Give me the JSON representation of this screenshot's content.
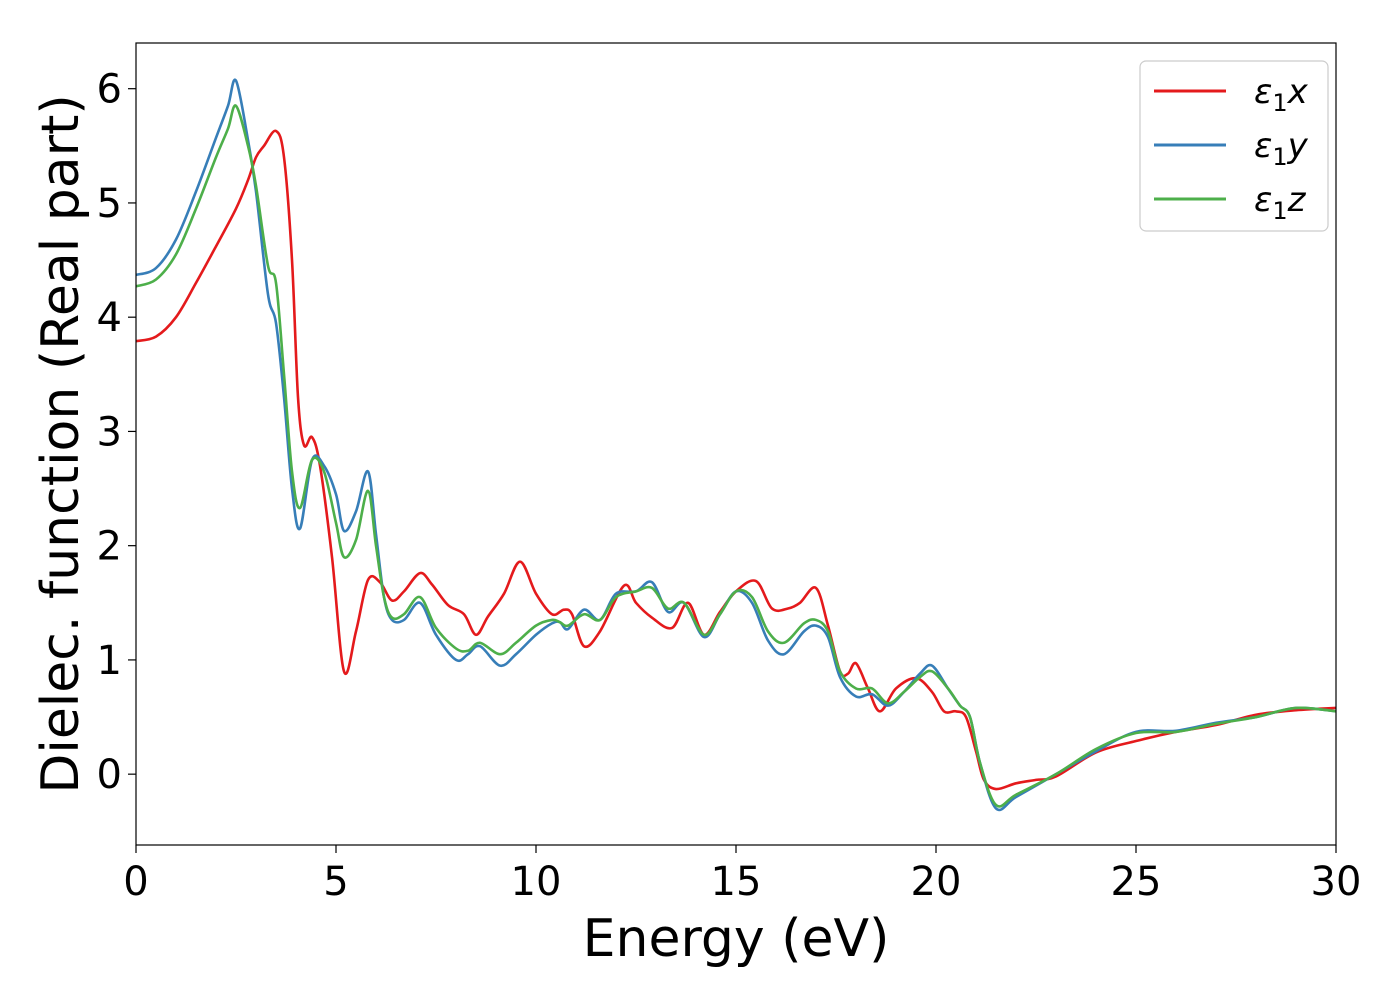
{
  "chart_data": {
    "type": "line",
    "title": "",
    "xlabel": "Energy (eV)",
    "ylabel": "Dielec. function (Real part)",
    "xlim": [
      0,
      30
    ],
    "ylim": [
      -0.62,
      6.4
    ],
    "xticks": [
      0,
      5,
      10,
      15,
      20,
      25,
      30
    ],
    "yticks": [
      0,
      1,
      2,
      3,
      4,
      5,
      6
    ],
    "xtick_labels": [
      "0",
      "5",
      "10",
      "15",
      "20",
      "25",
      "30"
    ],
    "ytick_labels": [
      "0",
      "1",
      "2",
      "3",
      "4",
      "5",
      "6"
    ],
    "grid": false,
    "legend_position": "top-right",
    "series": [
      {
        "name": "ε1x",
        "legend_main": "ε",
        "legend_sub": "1",
        "legend_var": "x",
        "color": "#e41a1c",
        "x": [
          0,
          0.5,
          1.0,
          1.5,
          2.0,
          2.5,
          2.8,
          3.0,
          3.2,
          3.5,
          3.7,
          3.9,
          4.05,
          4.2,
          4.4,
          4.6,
          4.9,
          5.2,
          5.5,
          5.8,
          6.1,
          6.4,
          6.7,
          7.1,
          7.4,
          7.8,
          8.2,
          8.5,
          8.8,
          9.2,
          9.6,
          10.0,
          10.4,
          10.7,
          10.9,
          11.2,
          11.6,
          12.2,
          12.5,
          12.9,
          13.4,
          13.8,
          14.2,
          14.6,
          15.0,
          15.5,
          15.9,
          16.3,
          16.6,
          17.0,
          17.3,
          17.6,
          17.8,
          18.0,
          18.3,
          18.6,
          19.0,
          19.5,
          19.9,
          20.2,
          20.5,
          20.75,
          21.0,
          21.2,
          21.5,
          22.0,
          22.5,
          23.0,
          24.0,
          25.0,
          26.0,
          27.0,
          28.0,
          29.0,
          30.0
        ],
        "y": [
          3.79,
          3.83,
          4.0,
          4.3,
          4.62,
          4.95,
          5.2,
          5.4,
          5.5,
          5.63,
          5.4,
          4.5,
          3.3,
          2.88,
          2.95,
          2.7,
          1.9,
          0.9,
          1.25,
          1.7,
          1.68,
          1.52,
          1.6,
          1.76,
          1.66,
          1.48,
          1.4,
          1.22,
          1.38,
          1.58,
          1.86,
          1.58,
          1.4,
          1.44,
          1.4,
          1.12,
          1.25,
          1.65,
          1.5,
          1.37,
          1.28,
          1.5,
          1.22,
          1.42,
          1.6,
          1.69,
          1.45,
          1.45,
          1.5,
          1.63,
          1.3,
          0.9,
          0.88,
          0.97,
          0.75,
          0.55,
          0.75,
          0.84,
          0.72,
          0.55,
          0.55,
          0.5,
          0.2,
          -0.05,
          -0.13,
          -0.08,
          -0.05,
          -0.02,
          0.19,
          0.29,
          0.37,
          0.43,
          0.52,
          0.56,
          0.58
        ]
      },
      {
        "name": "ε1y",
        "legend_main": "ε",
        "legend_sub": "1",
        "legend_var": "y",
        "color": "#377eb8",
        "x": [
          0,
          0.5,
          1.0,
          1.5,
          2.0,
          2.3,
          2.5,
          2.8,
          3.0,
          3.3,
          3.5,
          3.7,
          3.9,
          4.1,
          4.4,
          4.7,
          5.0,
          5.2,
          5.5,
          5.8,
          6.0,
          6.2,
          6.4,
          6.7,
          7.1,
          7.5,
          8.0,
          8.3,
          8.6,
          9.1,
          9.5,
          10.0,
          10.4,
          10.6,
          10.8,
          11.2,
          11.6,
          12.0,
          12.5,
          12.9,
          13.3,
          13.7,
          14.2,
          14.6,
          15.0,
          15.4,
          15.8,
          16.2,
          16.7,
          17.0,
          17.3,
          17.6,
          18.0,
          18.4,
          18.8,
          19.2,
          19.6,
          19.9,
          20.3,
          20.6,
          20.85,
          21.1,
          21.5,
          22.0,
          23.0,
          24.0,
          25.0,
          26.0,
          27.0,
          28.0,
          29.0,
          30.0
        ],
        "y": [
          4.37,
          4.43,
          4.68,
          5.1,
          5.57,
          5.85,
          6.07,
          5.55,
          5.1,
          4.2,
          3.95,
          3.3,
          2.5,
          2.15,
          2.75,
          2.7,
          2.45,
          2.13,
          2.3,
          2.65,
          2.1,
          1.55,
          1.35,
          1.35,
          1.5,
          1.22,
          1.0,
          1.05,
          1.12,
          0.95,
          1.05,
          1.22,
          1.32,
          1.33,
          1.27,
          1.44,
          1.35,
          1.58,
          1.6,
          1.68,
          1.42,
          1.5,
          1.2,
          1.4,
          1.6,
          1.5,
          1.17,
          1.05,
          1.25,
          1.3,
          1.2,
          0.85,
          0.68,
          0.7,
          0.6,
          0.72,
          0.88,
          0.95,
          0.75,
          0.6,
          0.5,
          0.1,
          -0.3,
          -0.2,
          0.0,
          0.2,
          0.37,
          0.38,
          0.45,
          0.5,
          0.58,
          0.55
        ]
      },
      {
        "name": "ε1z",
        "legend_main": "ε",
        "legend_sub": "1",
        "legend_var": "z",
        "color": "#4daf4a",
        "x": [
          0,
          0.5,
          1.0,
          1.5,
          2.0,
          2.3,
          2.5,
          2.8,
          3.0,
          3.3,
          3.5,
          3.7,
          3.9,
          4.1,
          4.4,
          4.7,
          5.0,
          5.2,
          5.5,
          5.8,
          6.0,
          6.2,
          6.4,
          6.7,
          7.1,
          7.5,
          8.0,
          8.3,
          8.6,
          9.1,
          9.5,
          10.0,
          10.4,
          10.6,
          10.8,
          11.2,
          11.6,
          12.0,
          12.5,
          12.9,
          13.3,
          13.7,
          14.2,
          14.6,
          15.0,
          15.4,
          15.8,
          16.2,
          16.7,
          17.0,
          17.3,
          17.6,
          18.0,
          18.4,
          18.8,
          19.2,
          19.6,
          19.9,
          20.3,
          20.6,
          20.85,
          21.1,
          21.5,
          22.0,
          23.0,
          24.0,
          25.0,
          26.0,
          27.0,
          28.0,
          29.0,
          30.0
        ],
        "y": [
          4.27,
          4.33,
          4.55,
          4.95,
          5.4,
          5.65,
          5.85,
          5.5,
          5.15,
          4.45,
          4.3,
          3.5,
          2.65,
          2.33,
          2.75,
          2.65,
          2.2,
          1.9,
          2.05,
          2.48,
          2.0,
          1.55,
          1.37,
          1.4,
          1.55,
          1.28,
          1.1,
          1.08,
          1.15,
          1.05,
          1.15,
          1.3,
          1.35,
          1.33,
          1.3,
          1.4,
          1.35,
          1.55,
          1.6,
          1.63,
          1.45,
          1.5,
          1.22,
          1.4,
          1.6,
          1.55,
          1.25,
          1.15,
          1.32,
          1.35,
          1.25,
          0.9,
          0.75,
          0.75,
          0.62,
          0.72,
          0.85,
          0.9,
          0.75,
          0.6,
          0.5,
          0.1,
          -0.27,
          -0.18,
          0.0,
          0.22,
          0.36,
          0.37,
          0.44,
          0.5,
          0.58,
          0.55
        ]
      }
    ]
  }
}
